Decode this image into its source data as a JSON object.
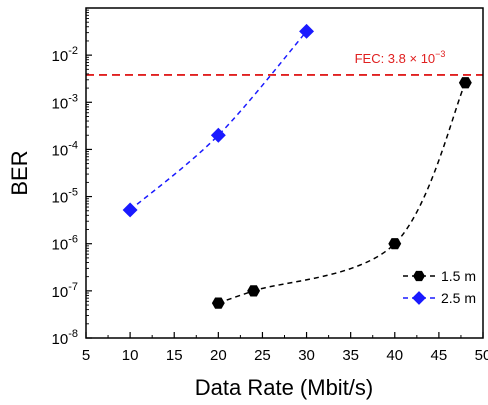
{
  "chart_data": {
    "type": "line",
    "xlabel": "Data Rate (Mbit/s)",
    "ylabel": "BER",
    "xlim": [
      5,
      50
    ],
    "ylim": [
      1e-08,
      0.1
    ],
    "yscale": "log",
    "grid": false,
    "legend_position": "bottom-right",
    "x_ticks": [
      5,
      10,
      15,
      20,
      25,
      30,
      35,
      40,
      45,
      50
    ],
    "y_ticks": [
      {
        "value": 1e-08,
        "exp": "-8"
      },
      {
        "value": 1e-07,
        "exp": "-7"
      },
      {
        "value": 1e-06,
        "exp": "-6"
      },
      {
        "value": 1e-05,
        "exp": "-5"
      },
      {
        "value": 0.0001,
        "exp": "-4"
      },
      {
        "value": 0.001,
        "exp": "-3"
      },
      {
        "value": 0.01,
        "exp": "-2"
      }
    ],
    "tick_base": "10",
    "series": [
      {
        "name": "1.5 m",
        "color": "#000000",
        "marker": "hexagon",
        "line_style": "dashed",
        "x": [
          20,
          24,
          40,
          48
        ],
        "y": [
          5.5e-08,
          1e-07,
          1e-06,
          0.0026
        ]
      },
      {
        "name": "2.5 m",
        "color": "#1a1aff",
        "marker": "diamond",
        "line_style": "dashed",
        "x": [
          10,
          20,
          30
        ],
        "y": [
          5.2e-06,
          0.0002,
          0.032
        ]
      }
    ],
    "annotations": [
      {
        "type": "hline",
        "y": 0.0038,
        "color": "#e02020",
        "line_style": "dashed",
        "label_prefix": "FEC: 3.8 × 10",
        "label_exp": "−3"
      }
    ]
  }
}
